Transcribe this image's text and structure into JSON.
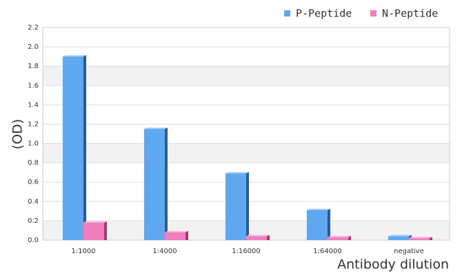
{
  "chart_data": {
    "type": "bar",
    "x_label": "Antibody dilution",
    "y_label": "(OD)",
    "categories": [
      "1:1000",
      "1:4000",
      "1:16000",
      "1:64000",
      "negative"
    ],
    "series": [
      {
        "name": "P-Peptide",
        "color": "#5fa8f0",
        "values": [
          1.9,
          1.15,
          0.69,
          0.31,
          0.04
        ]
      },
      {
        "name": "N-Peptide",
        "color": "#f07fbf",
        "values": [
          0.18,
          0.08,
          0.04,
          0.03,
          0.02
        ]
      }
    ],
    "ylim": [
      0,
      2.2
    ],
    "yticks": [
      {
        "value": 0,
        "label": "0.0"
      },
      0.2,
      0.4,
      0.6,
      0.8,
      {
        "value": 1,
        "label": "1.0"
      },
      1.2,
      1.4,
      1.6,
      1.8,
      {
        "value": 2,
        "label": "2.0"
      },
      2.2
    ],
    "grid": true,
    "legend": "top-right"
  }
}
